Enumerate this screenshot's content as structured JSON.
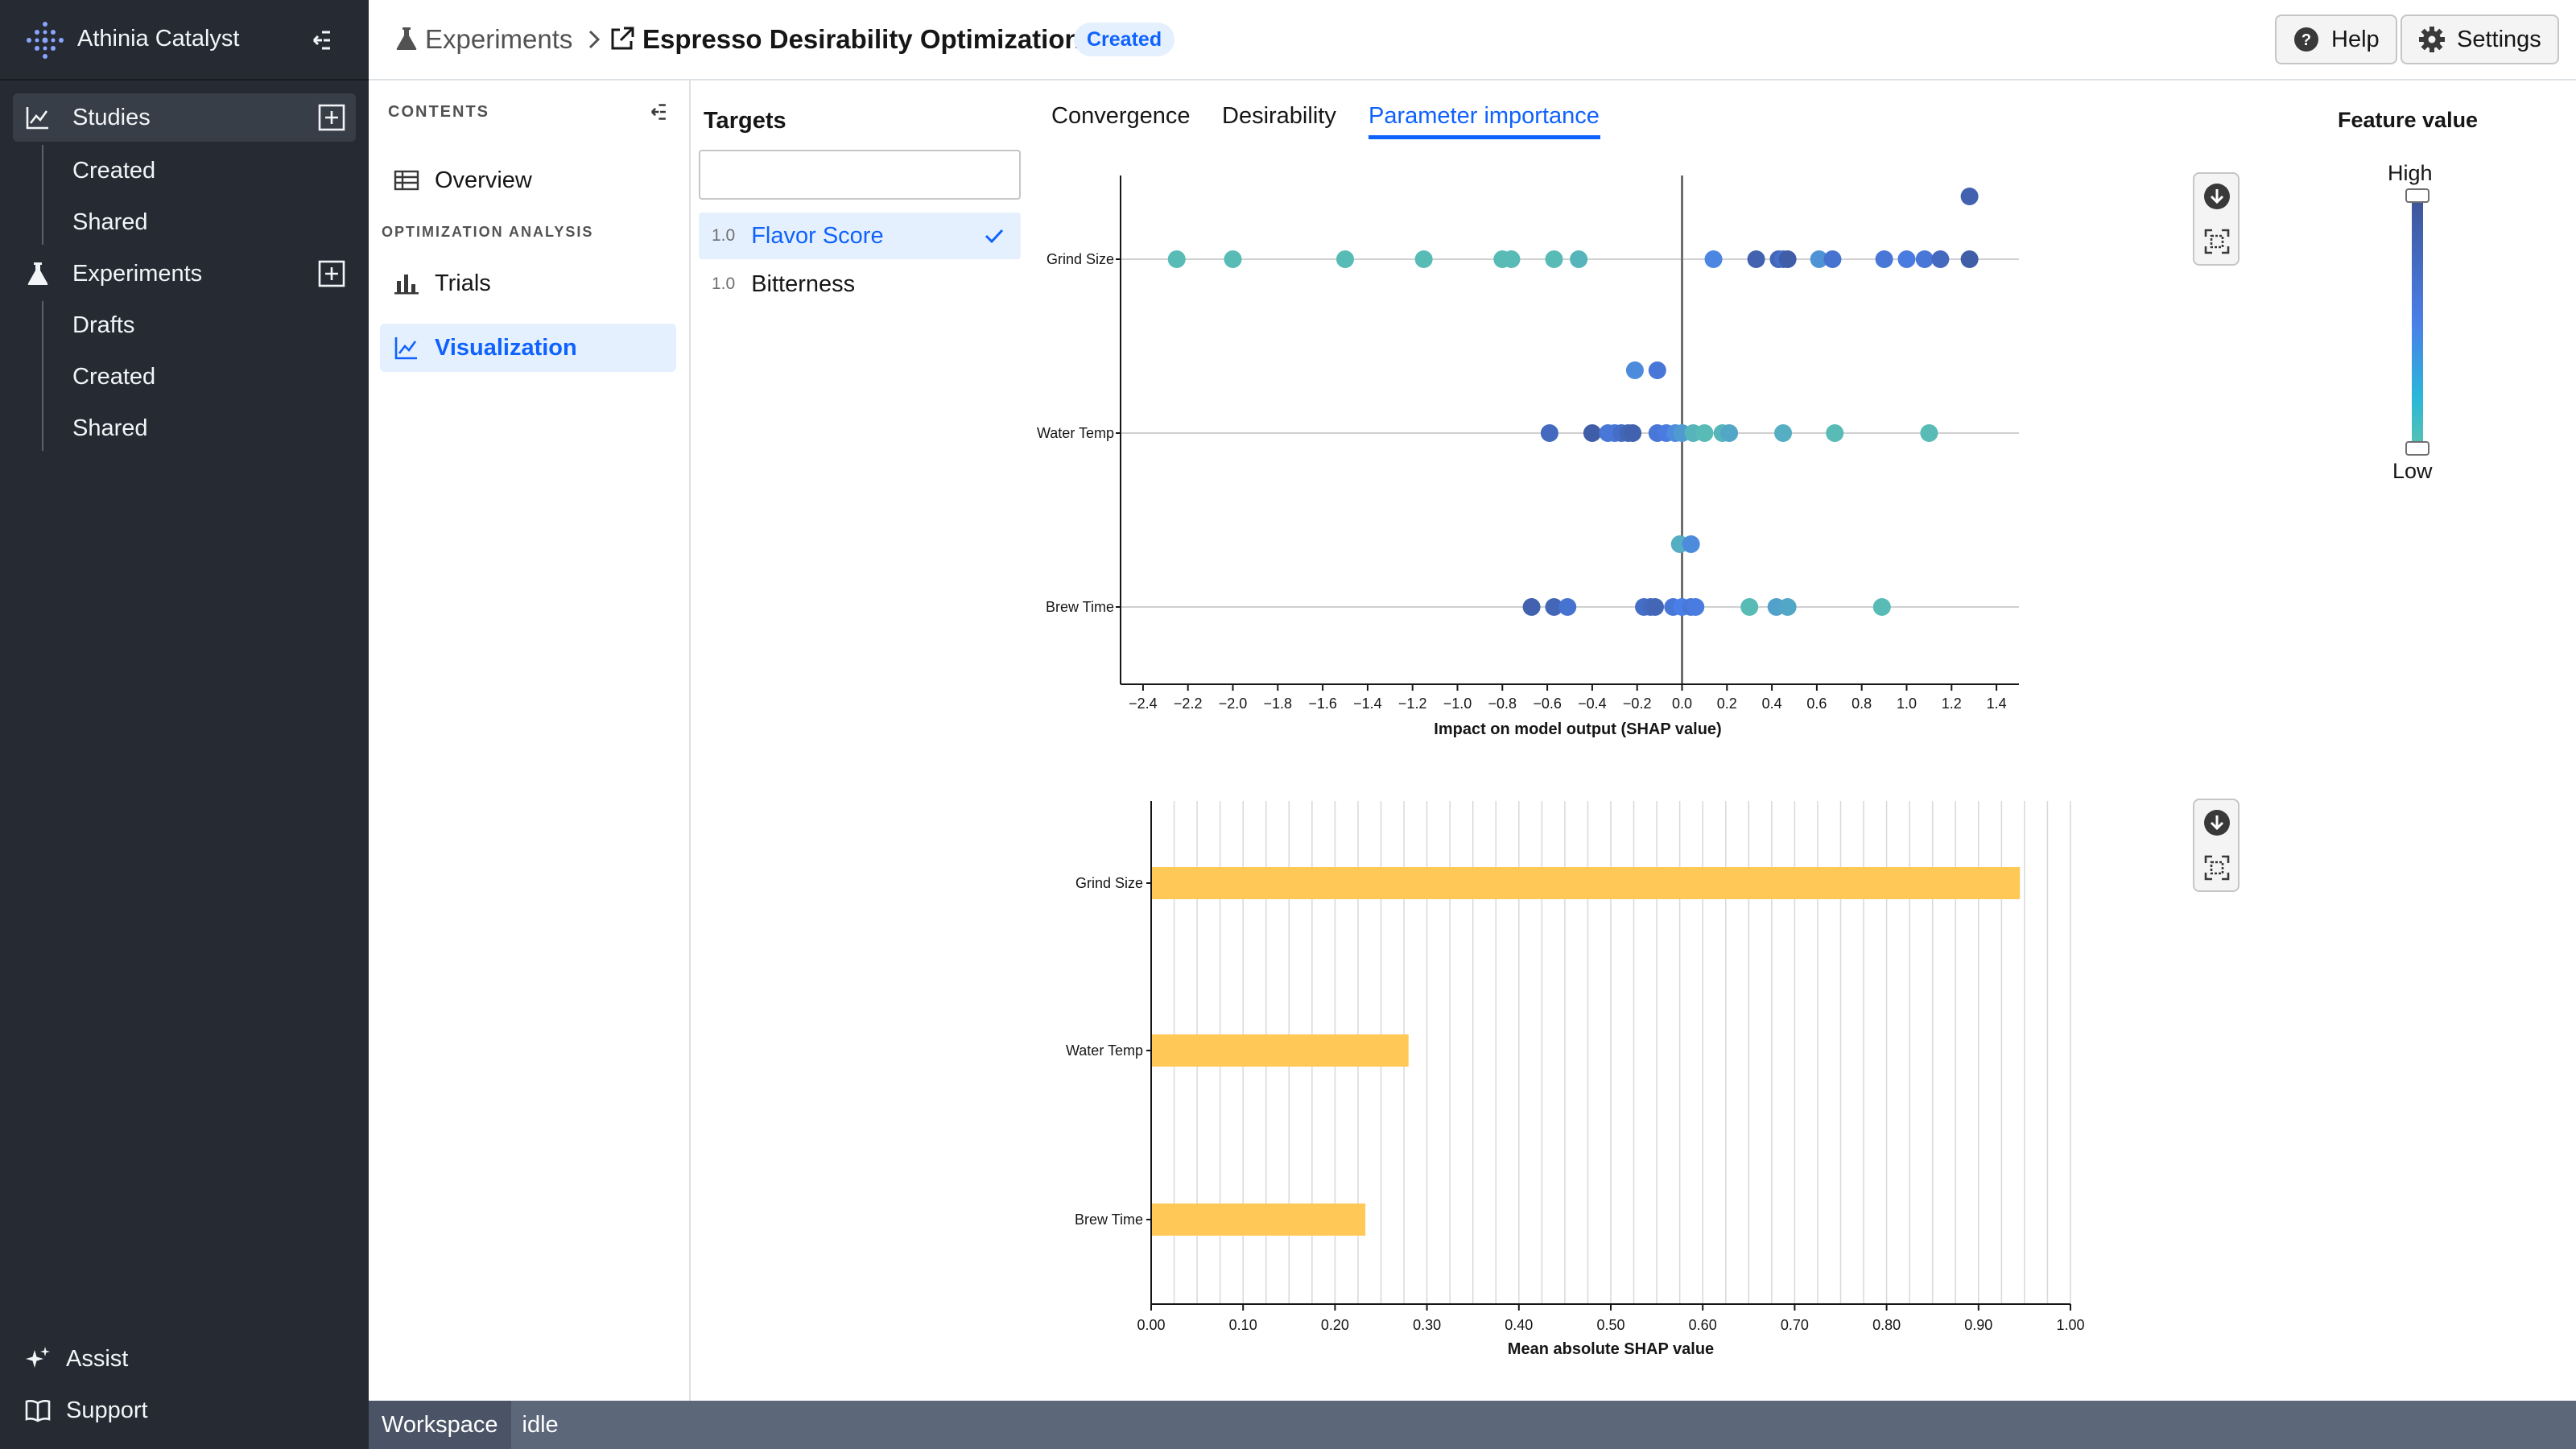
{
  "app": {
    "name": "Athinia Catalyst"
  },
  "sidebar": {
    "sections": [
      {
        "label": "Studies",
        "items": [
          "Created",
          "Shared"
        ]
      },
      {
        "label": "Experiments",
        "items": [
          "Drafts",
          "Created",
          "Shared"
        ]
      }
    ],
    "bottom": [
      {
        "label": "Assist"
      },
      {
        "label": "Support"
      }
    ]
  },
  "header": {
    "breadcrumb_root": "Experiments",
    "title": "Espresso Desirability Optimization",
    "status_badge": "Created",
    "help_label": "Help",
    "settings_label": "Settings"
  },
  "contents": {
    "heading": "CONTENTS",
    "overview": "Overview",
    "section_label": "OPTIMIZATION ANALYSIS",
    "trials": "Trials",
    "visualization": "Visualization"
  },
  "targets": {
    "heading": "Targets",
    "search_value": "",
    "items": [
      {
        "weight": "1.0",
        "name": "Flavor Score",
        "selected": true
      },
      {
        "weight": "1.0",
        "name": "Bitterness",
        "selected": false
      }
    ]
  },
  "tabs": [
    {
      "label": "Convergence",
      "active": false
    },
    {
      "label": "Desirability",
      "active": false
    },
    {
      "label": "Parameter importance",
      "active": true
    }
  ],
  "legend": {
    "title": "Feature value",
    "high": "High",
    "low": "Low"
  },
  "status": {
    "workspace": "Workspace",
    "state": "idle"
  },
  "chart_data": [
    {
      "type": "scatter",
      "title": "",
      "xlabel": "Impact on model output (SHAP value)",
      "ylabel": "",
      "xlim": [
        -2.5,
        1.5
      ],
      "xticks": [
        "−2.4",
        "−2.2",
        "−2.0",
        "−1.8",
        "−1.6",
        "−1.4",
        "−1.2",
        "−1.0",
        "−0.8",
        "−0.6",
        "−0.4",
        "−0.2",
        "0.0",
        "0.2",
        "0.4",
        "0.6",
        "0.8",
        "1.0",
        "1.2",
        "1.4"
      ],
      "xtick_values": [
        -2.4,
        -2.2,
        -2.0,
        -1.8,
        -1.6,
        -1.4,
        -1.2,
        -1.0,
        -0.8,
        -0.6,
        -0.4,
        -0.2,
        0.0,
        0.2,
        0.4,
        0.6,
        0.8,
        1.0,
        1.2,
        1.4
      ],
      "categories": [
        "Grind Size",
        "Water Temp",
        "Brew Time"
      ],
      "series": [
        {
          "category": "Grind Size",
          "points": [
            [
              -2.25,
              0,
              0.05
            ],
            [
              -2.0,
              0,
              0.05
            ],
            [
              -1.5,
              0,
              0.05
            ],
            [
              -1.15,
              0,
              0.05
            ],
            [
              -0.8,
              0,
              0.05
            ],
            [
              -0.76,
              0,
              0.05
            ],
            [
              -0.57,
              0,
              0.05
            ],
            [
              -0.46,
              0,
              0.1
            ],
            [
              0.14,
              0,
              0.45
            ],
            [
              0.33,
              0,
              0.85
            ],
            [
              0.43,
              0,
              0.8
            ],
            [
              0.45,
              0,
              0.7
            ],
            [
              0.47,
              0,
              0.9
            ],
            [
              0.61,
              0,
              0.35
            ],
            [
              0.67,
              0,
              0.65
            ],
            [
              0.9,
              0,
              0.6
            ],
            [
              1.0,
              0,
              0.55
            ],
            [
              1.08,
              0,
              0.6
            ],
            [
              1.15,
              0,
              0.75
            ],
            [
              1.28,
              0,
              0.9
            ],
            [
              1.28,
              1,
              0.85
            ]
          ]
        },
        {
          "category": "Water Temp",
          "points": [
            [
              -0.21,
              1,
              0.4
            ],
            [
              -0.11,
              1,
              0.6
            ],
            [
              -0.59,
              0,
              0.75
            ],
            [
              -0.4,
              0,
              0.9
            ],
            [
              -0.33,
              0,
              0.6
            ],
            [
              -0.3,
              0,
              0.6
            ],
            [
              -0.27,
              0,
              0.7
            ],
            [
              -0.24,
              0,
              0.8
            ],
            [
              -0.22,
              0,
              0.85
            ],
            [
              -0.11,
              0,
              0.6
            ],
            [
              -0.07,
              0,
              0.55
            ],
            [
              -0.03,
              0,
              0.4
            ],
            [
              0.0,
              0,
              0.3
            ],
            [
              0.05,
              0,
              0.1
            ],
            [
              0.1,
              0,
              0.05
            ],
            [
              0.18,
              0,
              0.1
            ],
            [
              0.21,
              0,
              0.2
            ],
            [
              0.45,
              0,
              0.15
            ],
            [
              0.68,
              0,
              0.05
            ],
            [
              1.1,
              0,
              0.05
            ]
          ]
        },
        {
          "category": "Brew Time",
          "points": [
            [
              -0.01,
              1,
              0.15
            ],
            [
              0.04,
              1,
              0.4
            ],
            [
              -0.67,
              0,
              0.85
            ],
            [
              -0.57,
              0,
              0.8
            ],
            [
              -0.51,
              0,
              0.65
            ],
            [
              -0.17,
              0,
              0.7
            ],
            [
              -0.14,
              0,
              0.75
            ],
            [
              -0.12,
              0,
              0.8
            ],
            [
              -0.04,
              0,
              0.6
            ],
            [
              0.0,
              0,
              0.5
            ],
            [
              0.04,
              0,
              0.6
            ],
            [
              0.06,
              0,
              0.55
            ],
            [
              0.3,
              0,
              0.05
            ],
            [
              0.42,
              0,
              0.25
            ],
            [
              0.47,
              0,
              0.2
            ],
            [
              0.89,
              0,
              0.05
            ]
          ]
        }
      ]
    },
    {
      "type": "bar",
      "orientation": "horizontal",
      "title": "",
      "xlabel": "Mean absolute SHAP value",
      "ylabel": "",
      "xlim": [
        0,
        1.0
      ],
      "xticks": [
        "0.00",
        "0.10",
        "0.20",
        "0.30",
        "0.40",
        "0.50",
        "0.60",
        "0.70",
        "0.80",
        "0.90",
        "1.00"
      ],
      "categories": [
        "Grind Size",
        "Water Temp",
        "Brew Time"
      ],
      "values": [
        0.945,
        0.28,
        0.233
      ],
      "bar_color": "#ffc857",
      "grid": true
    }
  ],
  "colors": {
    "accent": "#0f62fe",
    "sidebar_bg": "#262b33",
    "feature_low": "#59c2b0",
    "feature_mid": "#4a7fe8",
    "feature_high": "#3e5597",
    "bar": "#ffc857"
  }
}
